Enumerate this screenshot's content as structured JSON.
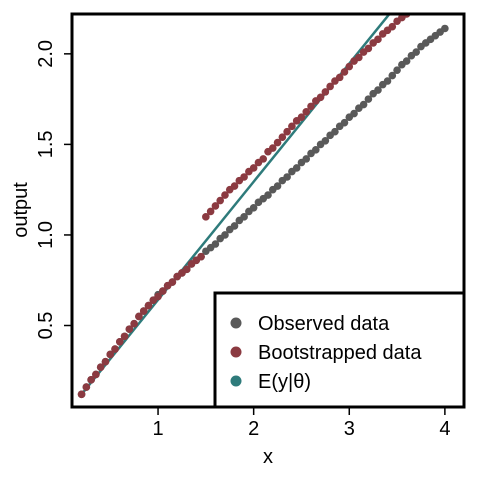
{
  "chart_data": {
    "type": "scatter",
    "xlabel": "x",
    "ylabel": "output",
    "xlim": [
      0.1,
      4.2
    ],
    "ylim": [
      0.05,
      2.22
    ],
    "x_ticks": [
      1,
      2,
      3,
      4
    ],
    "x_tick_labels": [
      "1",
      "2",
      "3",
      "4"
    ],
    "y_ticks": [
      0.5,
      1.0,
      1.5,
      2.0
    ],
    "y_tick_labels": [
      "0.5",
      "1.0",
      "1.5",
      "2.0"
    ],
    "grid": false,
    "legend_position": "bottom-right",
    "series": [
      {
        "name": "Observed data",
        "kind": "points",
        "color": "#595959",
        "x": [
          0.2,
          0.25,
          0.3,
          0.35,
          0.4,
          0.45,
          0.5,
          0.55,
          0.6,
          0.65,
          0.7,
          0.75,
          0.8,
          0.85,
          0.9,
          0.95,
          1.0,
          1.05,
          1.1,
          1.15,
          1.2,
          1.25,
          1.3,
          1.35,
          1.4,
          1.45,
          1.5,
          1.55,
          1.6,
          1.65,
          1.7,
          1.75,
          1.8,
          1.85,
          1.9,
          1.95,
          2.0,
          2.05,
          2.1,
          2.15,
          2.2,
          2.25,
          2.3,
          2.35,
          2.4,
          2.45,
          2.5,
          2.55,
          2.6,
          2.65,
          2.7,
          2.75,
          2.8,
          2.85,
          2.9,
          2.95,
          3.0,
          3.05,
          3.1,
          3.15,
          3.2,
          3.25,
          3.3,
          3.35,
          3.4,
          3.45,
          3.5,
          3.55,
          3.6,
          3.65,
          3.7,
          3.75,
          3.8,
          3.85,
          3.9,
          3.95,
          4.0
        ],
        "y": [
          0.12,
          0.16,
          0.2,
          0.23,
          0.27,
          0.3,
          0.34,
          0.37,
          0.41,
          0.44,
          0.48,
          0.51,
          0.55,
          0.58,
          0.61,
          0.64,
          0.67,
          0.69,
          0.72,
          0.74,
          0.77,
          0.79,
          0.81,
          0.84,
          0.86,
          0.88,
          0.91,
          0.93,
          0.95,
          0.98,
          1.0,
          1.03,
          1.05,
          1.08,
          1.1,
          1.13,
          1.15,
          1.18,
          1.2,
          1.22,
          1.25,
          1.27,
          1.3,
          1.32,
          1.35,
          1.37,
          1.4,
          1.42,
          1.45,
          1.47,
          1.5,
          1.52,
          1.55,
          1.57,
          1.6,
          1.62,
          1.65,
          1.67,
          1.7,
          1.72,
          1.75,
          1.78,
          1.8,
          1.83,
          1.85,
          1.88,
          1.91,
          1.94,
          1.96,
          1.99,
          2.01,
          2.04,
          2.06,
          2.08,
          2.1,
          2.12,
          2.14
        ]
      },
      {
        "name": "Bootstrapped data",
        "kind": "points",
        "color": "#8b3a41",
        "x": [
          0.2,
          0.25,
          0.3,
          0.35,
          0.4,
          0.45,
          0.5,
          0.55,
          0.6,
          0.65,
          0.7,
          0.75,
          0.8,
          0.85,
          0.9,
          0.95,
          1.0,
          1.05,
          1.1,
          1.15,
          1.2,
          1.25,
          1.3,
          1.35,
          1.4,
          1.45,
          1.5,
          1.55,
          1.6,
          1.65,
          1.7,
          1.75,
          1.8,
          1.85,
          1.9,
          1.95,
          2.0,
          2.05,
          2.1,
          2.15,
          2.2,
          2.25,
          2.3,
          2.35,
          2.4,
          2.45,
          2.5,
          2.55,
          2.6,
          2.65,
          2.7,
          2.75,
          2.8,
          2.85,
          2.9,
          2.95,
          3.0,
          3.05,
          3.1,
          3.15,
          3.2,
          3.25,
          3.3,
          3.35,
          3.4,
          3.45,
          3.5,
          3.55,
          3.6,
          3.65
        ],
        "y": [
          0.12,
          0.16,
          0.2,
          0.23,
          0.27,
          0.3,
          0.34,
          0.37,
          0.41,
          0.44,
          0.48,
          0.51,
          0.55,
          0.58,
          0.61,
          0.64,
          0.66,
          0.69,
          0.72,
          0.74,
          0.77,
          0.79,
          0.81,
          0.84,
          0.86,
          0.88,
          1.1,
          1.13,
          1.16,
          1.19,
          1.22,
          1.25,
          1.27,
          1.3,
          1.32,
          1.35,
          1.37,
          1.4,
          1.42,
          1.46,
          1.48,
          1.51,
          1.54,
          1.57,
          1.6,
          1.63,
          1.65,
          1.68,
          1.71,
          1.74,
          1.76,
          1.79,
          1.82,
          1.85,
          1.87,
          1.9,
          1.93,
          1.96,
          1.98,
          2.01,
          2.03,
          2.06,
          2.08,
          2.11,
          2.13,
          2.15,
          2.18,
          2.2,
          2.22,
          2.24
        ]
      },
      {
        "name": "E(y|θ)",
        "kind": "line",
        "color": "#2e7b7b",
        "x": [
          0.2,
          3.42
        ],
        "y": [
          0.12,
          2.22
        ]
      }
    ]
  }
}
